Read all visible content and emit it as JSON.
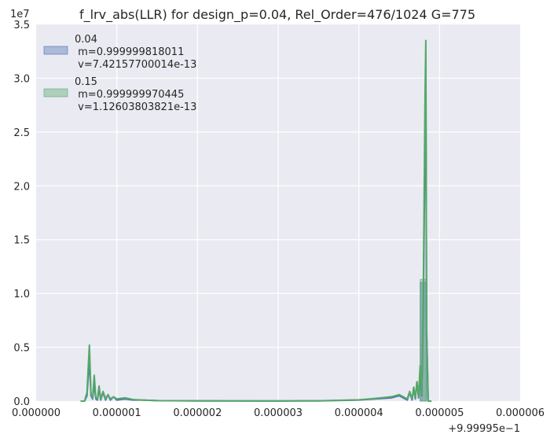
{
  "chart_data": {
    "type": "histogram+kde",
    "title": "f_lrv_abs(LLR) for design_p=0.04, Rel_Order=476/1024 G=775",
    "xlabel": "",
    "ylabel": "",
    "y_multiplier": "1e7",
    "x_offset": "+9.99995e−1",
    "xlim": [
      0,
      6e-06
    ],
    "ylim": [
      0,
      3.5
    ],
    "grid": true,
    "legend_position": "top-left",
    "x_ticks": [
      "0.000000",
      "0.000001",
      "0.000002",
      "0.000003",
      "0.000004",
      "0.000005",
      "0.000006"
    ],
    "y_ticks": [
      "0.0",
      "0.5",
      "1.0",
      "1.5",
      "2.0",
      "2.5",
      "3.0",
      "3.5"
    ],
    "series": [
      {
        "name": "0.04",
        "stats": [
          " m=0.999999818011",
          " v=7.42157700014e-13"
        ],
        "color": "#4c72b0",
        "hist": [
          {
            "x0": 4.76e-06,
            "x1": 4.84e-06,
            "h": 1.1
          }
        ],
        "kde": [
          [
            5.5e-07,
            0
          ],
          [
            6e-07,
            0
          ],
          [
            6.3e-07,
            0.05
          ],
          [
            6.6e-07,
            0.38
          ],
          [
            6.8e-07,
            0.05
          ],
          [
            7e-07,
            0.02
          ],
          [
            7.2e-07,
            0.16
          ],
          [
            7.4e-07,
            0.02
          ],
          [
            7.6e-07,
            0.01
          ],
          [
            7.8e-07,
            0.12
          ],
          [
            8e-07,
            0.01
          ],
          [
            8.3e-07,
            0.08
          ],
          [
            8.6e-07,
            0.01
          ],
          [
            8.9e-07,
            0.06
          ],
          [
            9.2e-07,
            0.01
          ],
          [
            9.6e-07,
            0.04
          ],
          [
            1e-06,
            0.01
          ],
          [
            1.1e-06,
            0.02
          ],
          [
            1.2e-06,
            0.01
          ],
          [
            1.3e-06,
            0.01
          ],
          [
            1.5e-06,
            0.005
          ],
          [
            2e-06,
            0.002
          ],
          [
            3e-06,
            0.001
          ],
          [
            3.5e-06,
            0.002
          ],
          [
            4e-06,
            0.01
          ],
          [
            4.2e-06,
            0.02
          ],
          [
            4.4e-06,
            0.03
          ],
          [
            4.5e-06,
            0.05
          ],
          [
            4.6e-06,
            0.01
          ],
          [
            4.63e-06,
            0.08
          ],
          [
            4.66e-06,
            0.01
          ],
          [
            4.68e-06,
            0.12
          ],
          [
            4.7e-06,
            0.02
          ],
          [
            4.72e-06,
            0.18
          ],
          [
            4.74e-06,
            0.03
          ],
          [
            4.76e-06,
            0.28
          ],
          [
            4.78e-06,
            0.05
          ],
          [
            4.8e-06,
            0.9
          ],
          [
            4.82e-06,
            2.4
          ],
          [
            4.83e-06,
            3.1
          ],
          [
            4.84e-06,
            0.6
          ],
          [
            4.86e-06,
            0
          ],
          [
            4.9e-06,
            0
          ]
        ]
      },
      {
        "name": "0.15",
        "stats": [
          " m=0.999999970445",
          " v=1.12603803821e-13"
        ],
        "color": "#55a868",
        "hist": [
          {
            "x0": 4.76e-06,
            "x1": 4.84e-06,
            "h": 1.13
          }
        ],
        "kde": [
          [
            5.5e-07,
            0
          ],
          [
            6e-07,
            0
          ],
          [
            6.3e-07,
            0.08
          ],
          [
            6.6e-07,
            0.52
          ],
          [
            6.8e-07,
            0.06
          ],
          [
            7e-07,
            0.03
          ],
          [
            7.2e-07,
            0.24
          ],
          [
            7.4e-07,
            0.03
          ],
          [
            7.6e-07,
            0.02
          ],
          [
            7.8e-07,
            0.14
          ],
          [
            8e-07,
            0.02
          ],
          [
            8.3e-07,
            0.09
          ],
          [
            8.6e-07,
            0.02
          ],
          [
            8.9e-07,
            0.06
          ],
          [
            9.2e-07,
            0.02
          ],
          [
            9.6e-07,
            0.04
          ],
          [
            1e-06,
            0.02
          ],
          [
            1.1e-06,
            0.03
          ],
          [
            1.2e-06,
            0.015
          ],
          [
            1.3e-06,
            0.01
          ],
          [
            1.5e-06,
            0.005
          ],
          [
            2e-06,
            0.003
          ],
          [
            3e-06,
            0.002
          ],
          [
            3.5e-06,
            0.003
          ],
          [
            4e-06,
            0.012
          ],
          [
            4.2e-06,
            0.025
          ],
          [
            4.4e-06,
            0.04
          ],
          [
            4.5e-06,
            0.06
          ],
          [
            4.6e-06,
            0.02
          ],
          [
            4.63e-06,
            0.09
          ],
          [
            4.66e-06,
            0.02
          ],
          [
            4.68e-06,
            0.13
          ],
          [
            4.7e-06,
            0.03
          ],
          [
            4.72e-06,
            0.18
          ],
          [
            4.74e-06,
            0.04
          ],
          [
            4.76e-06,
            0.33
          ],
          [
            4.78e-06,
            0.06
          ],
          [
            4.8e-06,
            1.1
          ],
          [
            4.82e-06,
            2.8
          ],
          [
            4.83e-06,
            3.35
          ],
          [
            4.84e-06,
            0.7
          ],
          [
            4.86e-06,
            0
          ],
          [
            4.9e-06,
            0
          ]
        ]
      }
    ]
  }
}
